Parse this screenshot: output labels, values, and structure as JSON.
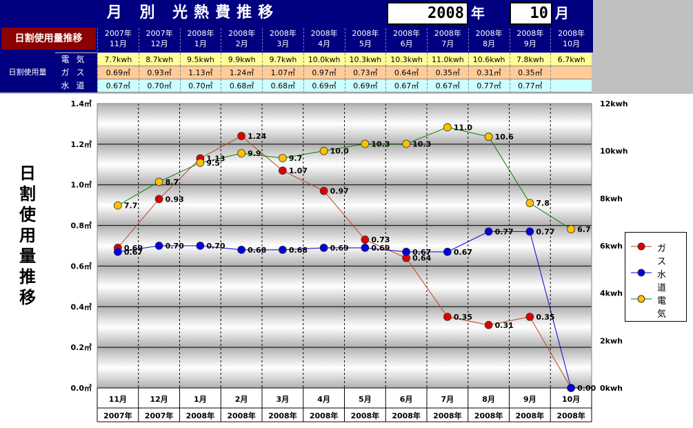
{
  "header": {
    "title": "月 別 光熱費推移",
    "year_value": "2008",
    "year_unit": "年",
    "month_value": "10",
    "month_unit": "月"
  },
  "table": {
    "title": "日割使用量推移",
    "row_group_label": "日割使用量",
    "rows": [
      {
        "label": "電気",
        "values": [
          "7.7kwh",
          "8.7kwh",
          "9.5kwh",
          "9.9kwh",
          "9.7kwh",
          "10.0kwh",
          "10.3kwh",
          "10.3kwh",
          "11.0kwh",
          "10.6kwh",
          "7.8kwh",
          "6.7kwh"
        ]
      },
      {
        "label": "ガス",
        "values": [
          "0.69㎥",
          "0.93㎥",
          "1.13㎥",
          "1.24㎥",
          "1.07㎥",
          "0.97㎥",
          "0.73㎥",
          "0.64㎥",
          "0.35㎥",
          "0.31㎥",
          "0.35㎥",
          ""
        ]
      },
      {
        "label": "水道",
        "values": [
          "0.67㎥",
          "0.70㎥",
          "0.70㎥",
          "0.68㎥",
          "0.68㎥",
          "0.69㎥",
          "0.69㎥",
          "0.67㎥",
          "0.67㎥",
          "0.77㎥",
          "0.77㎥",
          ""
        ]
      }
    ]
  },
  "chart_data": {
    "type": "line",
    "title": "日割使用量推移",
    "categories": [
      "11月",
      "12月",
      "1月",
      "2月",
      "3月",
      "4月",
      "5月",
      "6月",
      "7月",
      "8月",
      "9月",
      "10月"
    ],
    "category_years": [
      "2007年",
      "2007年",
      "2008年",
      "2008年",
      "2008年",
      "2008年",
      "2008年",
      "2008年",
      "2008年",
      "2008年",
      "2008年",
      "2008年"
    ],
    "column_headers": [
      {
        "year": "2007年",
        "month": "11月"
      },
      {
        "year": "2007年",
        "month": "12月"
      },
      {
        "year": "2008年",
        "month": "1月"
      },
      {
        "year": "2008年",
        "month": "2月"
      },
      {
        "year": "2008年",
        "month": "3月"
      },
      {
        "year": "2008年",
        "month": "4月"
      },
      {
        "year": "2008年",
        "month": "5月"
      },
      {
        "year": "2008年",
        "month": "6月"
      },
      {
        "year": "2008年",
        "month": "7月"
      },
      {
        "year": "2008年",
        "month": "8月"
      },
      {
        "year": "2008年",
        "month": "9月"
      },
      {
        "year": "2008年",
        "month": "10月"
      }
    ],
    "y_left": {
      "min": 0,
      "max": 1.4,
      "ticks": [
        "0.0㎥",
        "0.2㎥",
        "0.4㎥",
        "0.6㎥",
        "0.8㎥",
        "1.0㎥",
        "1.2㎥",
        "1.4㎥"
      ]
    },
    "y_right": {
      "min": 0,
      "max": 12,
      "ticks": [
        "0kwh",
        "2kwh",
        "4kwh",
        "6kwh",
        "8kwh",
        "10kwh",
        "12kwh"
      ]
    },
    "series": [
      {
        "name": "ガス",
        "axis": "left",
        "color": "#e00000",
        "line_color": "#c04020",
        "values": [
          0.69,
          0.93,
          1.13,
          1.24,
          1.07,
          0.97,
          0.73,
          0.64,
          0.35,
          0.31,
          0.35,
          0.0
        ],
        "labels": [
          "0.69",
          "0.93",
          "1.13",
          "1.24",
          "1.07",
          "0.97",
          "0.73",
          "0.64",
          "0.35",
          "0.31",
          "0.35",
          ""
        ]
      },
      {
        "name": "水道",
        "axis": "left",
        "color": "#0000e0",
        "line_color": "#0000cc",
        "values": [
          0.67,
          0.7,
          0.7,
          0.68,
          0.68,
          0.69,
          0.69,
          0.67,
          0.67,
          0.77,
          0.77,
          0.0
        ],
        "labels": [
          "0.67",
          "0.70",
          "0.70",
          "0.68",
          "0.68",
          "0.69",
          "0.69",
          "0.67",
          "0.67",
          "0.77",
          "0.77",
          "0.00"
        ]
      },
      {
        "name": "電気",
        "axis": "right",
        "color": "#ffc000",
        "line_color": "#008000",
        "values": [
          7.7,
          8.7,
          9.5,
          9.9,
          9.7,
          10.0,
          10.3,
          10.3,
          11.0,
          10.6,
          7.8,
          6.7
        ],
        "labels": [
          "7.7",
          "8.7",
          "9.5",
          "9.9",
          "9.7",
          "10.0",
          "10.3",
          "10.3",
          "11.0",
          "10.6",
          "7.8",
          "6.7"
        ]
      }
    ],
    "legend_position": "right"
  }
}
